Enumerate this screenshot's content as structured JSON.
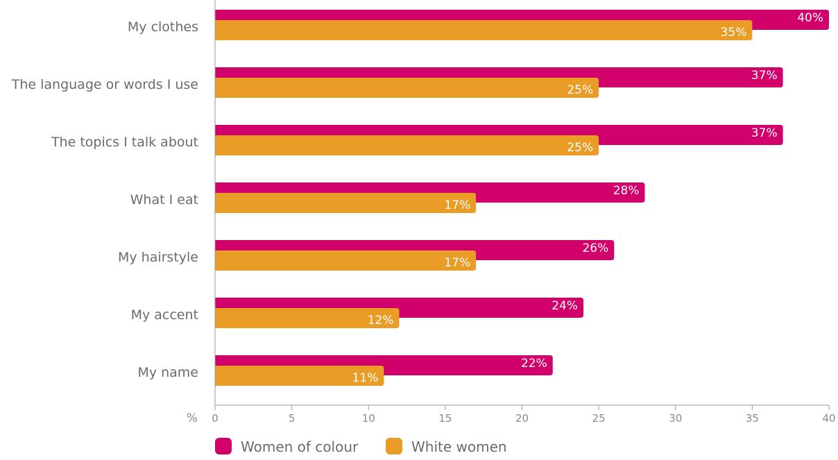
{
  "chart_data": {
    "type": "bar",
    "orientation": "horizontal",
    "categories": [
      "My clothes",
      "The language or words I use",
      "The topics I talk about",
      "What I eat",
      "My hairstyle",
      "My accent",
      "My name"
    ],
    "series": [
      {
        "name": "Women of colour",
        "color": "#d1006b",
        "values": [
          40,
          37,
          37,
          28,
          26,
          24,
          22
        ]
      },
      {
        "name": "White women",
        "color": "#e99c26",
        "values": [
          35,
          25,
          25,
          17,
          17,
          12,
          11
        ]
      }
    ],
    "value_labels": [
      [
        "40%",
        "37%",
        "37%",
        "28%",
        "26%",
        "24%",
        "22%"
      ],
      [
        "35%",
        "25%",
        "25%",
        "17%",
        "17%",
        "12%",
        "11%"
      ]
    ],
    "xlim": [
      0,
      40
    ],
    "xticks": [
      0,
      5,
      10,
      15,
      20,
      25,
      30,
      35,
      40
    ],
    "xunit": "%",
    "grid": false,
    "legend_position": "bottom-left"
  }
}
